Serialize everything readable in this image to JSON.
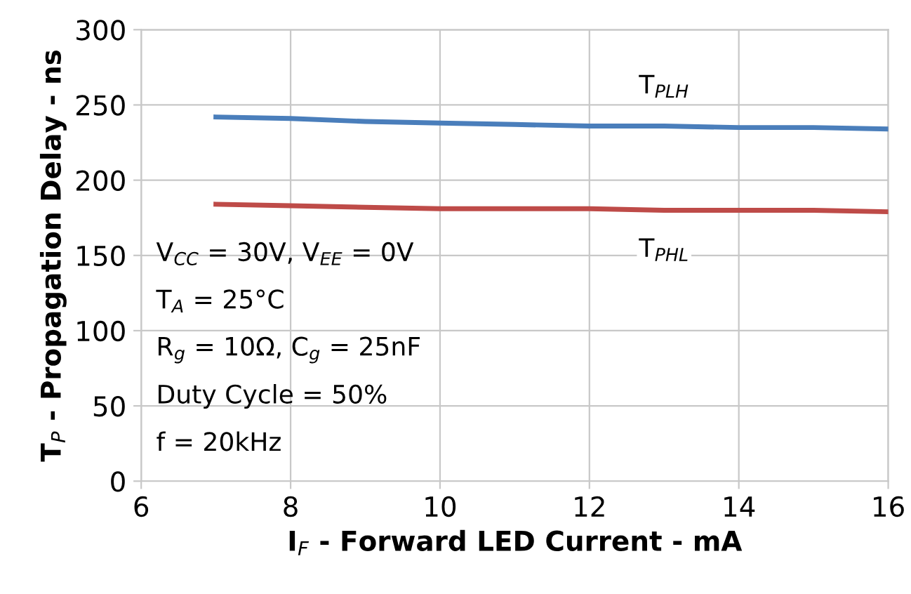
{
  "chart_data": {
    "type": "line",
    "xlabel": "I$_{F}$ - Forward LED Current - mA",
    "ylabel": "T$_{P}$ - Propagation Delay - ns",
    "x": [
      7,
      8,
      9,
      10,
      11,
      12,
      13,
      14,
      15,
      16
    ],
    "series": [
      {
        "name": "T$_{PLH}$",
        "color": "#4a7ebb",
        "values": [
          242,
          241,
          239,
          238,
          237,
          236,
          236,
          235,
          235,
          234
        ]
      },
      {
        "name": "T$_{PHL}$",
        "color": "#be4b48",
        "values": [
          184,
          183,
          182,
          181,
          181,
          181,
          180,
          180,
          180,
          179
        ]
      }
    ],
    "xlim": [
      6,
      16
    ],
    "xticks": [
      6,
      8,
      10,
      12,
      14,
      16
    ],
    "ylim": [
      0,
      300
    ],
    "yticks": [
      0,
      50,
      100,
      150,
      200,
      250,
      300
    ],
    "grid": true,
    "marker": "none",
    "line_style": "solid",
    "legend": false,
    "annotations": [
      "V$_{CC}$ = 30V, V$_{EE}$ = 0V",
      "T$_{A}$ = 25°C",
      "R$_{g}$ = 10Ω, C$_{g}$ = 25nF",
      "Duty Cycle = 50%",
      "f = 20kHz"
    ]
  }
}
